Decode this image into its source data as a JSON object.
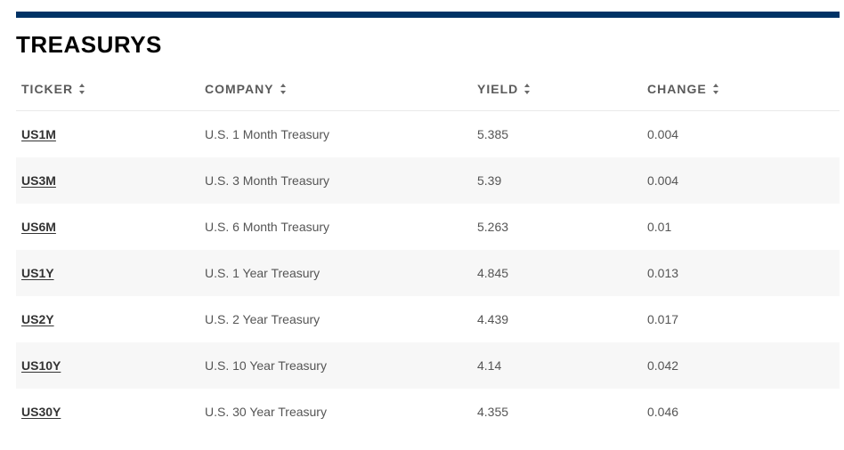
{
  "section": {
    "title": "TREASURYS",
    "accent_color": "#003366"
  },
  "table": {
    "columns": [
      {
        "label": "TICKER",
        "icon": "sort-icon"
      },
      {
        "label": "COMPANY",
        "icon": "sort-icon"
      },
      {
        "label": "YIELD",
        "icon": "sort-icon"
      },
      {
        "label": "CHANGE",
        "icon": "sort-icon"
      }
    ],
    "rows": [
      {
        "ticker": "US1M",
        "company": "U.S. 1 Month Treasury",
        "yield": "5.385",
        "change": "0.004"
      },
      {
        "ticker": "US3M",
        "company": "U.S. 3 Month Treasury",
        "yield": "5.39",
        "change": "0.004"
      },
      {
        "ticker": "US6M",
        "company": "U.S. 6 Month Treasury",
        "yield": "5.263",
        "change": "0.01"
      },
      {
        "ticker": "US1Y",
        "company": "U.S. 1 Year Treasury",
        "yield": "4.845",
        "change": "0.013"
      },
      {
        "ticker": "US2Y",
        "company": "U.S. 2 Year Treasury",
        "yield": "4.439",
        "change": "0.017"
      },
      {
        "ticker": "US10Y",
        "company": "U.S. 10 Year Treasury",
        "yield": "4.14",
        "change": "0.042"
      },
      {
        "ticker": "US30Y",
        "company": "U.S. 30 Year Treasury",
        "yield": "4.355",
        "change": "0.046"
      }
    ]
  }
}
